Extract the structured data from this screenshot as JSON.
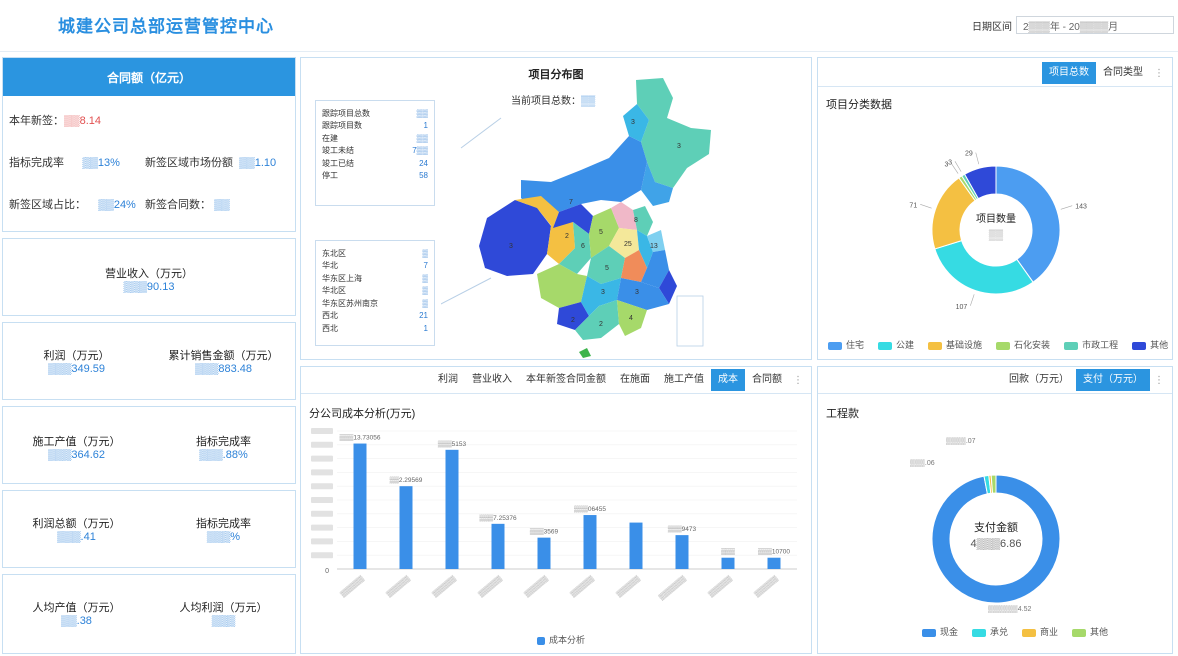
{
  "header": {
    "title": "城建公司总部运营管控中心",
    "date_label": "日期区间",
    "date_value": "2▒▒▒年 - 20▒▒▒▒月"
  },
  "contract_card": {
    "head": "合同额（亿元）",
    "year_added_label": "本年新签：",
    "year_added_value": "▒▒8.14",
    "rate_label": "指标完成率",
    "rate_value": "▒▒13%",
    "region_label": "新签区域市场份额",
    "region_value": "▒▒1.10",
    "share_label": "新签区域占比：",
    "share_value": "▒▒24%",
    "count_label": "新签合同数：",
    "count_value": "▒▒"
  },
  "stats": [
    {
      "label": "营业收入（万元）",
      "value": "▒▒▒90.13"
    },
    {
      "label": "利润（万元）",
      "value": "▒▒▒349.59"
    },
    {
      "label": "累计销售金额（万元）",
      "value": "▒▒▒883.48"
    },
    {
      "label": "施工产值（万元）",
      "value": "▒▒▒364.62"
    },
    {
      "label": "指标完成率",
      "value": "▒▒▒.88%"
    },
    {
      "label": "利润总额（万元）",
      "value": "▒▒▒.41"
    },
    {
      "label": "指标完成率",
      "value": "▒▒▒%"
    },
    {
      "label": "人均产值（万元）",
      "value": "▒▒.38"
    },
    {
      "label": "人均利润（万元）",
      "value": "▒▒▒"
    }
  ],
  "map": {
    "title": "项目分布图",
    "subtitle": "当前项目总数：",
    "subtitle_value": "▒▒",
    "status_list": [
      {
        "label": "跟踪项目总数",
        "value": "▒▒"
      },
      {
        "label": "跟踪项目数",
        "value": "1"
      },
      {
        "label": "在建",
        "value": "▒▒"
      },
      {
        "label": "竣工未结",
        "value": "7▒▒"
      },
      {
        "label": "竣工已结",
        "value": "24"
      },
      {
        "label": "停工",
        "value": "58"
      }
    ],
    "region_list": [
      {
        "label": "东北区",
        "value": "▒"
      },
      {
        "label": "华北",
        "value": "7"
      },
      {
        "label": "华东区上海",
        "value": "▒"
      },
      {
        "label": "华北区",
        "value": "▒"
      },
      {
        "label": "华东区苏州南京",
        "value": "▒"
      },
      {
        "label": "西北",
        "value": "21"
      },
      {
        "label": "西北",
        "value": "1"
      }
    ],
    "province_labels": [
      "3",
      "3",
      "3",
      "2",
      "5",
      "7",
      "6",
      "25",
      "13",
      "8",
      "5",
      "2",
      "3",
      "3",
      "2",
      "4"
    ]
  },
  "project_panel": {
    "tabs": [
      "项目总数",
      "合同类型"
    ],
    "active_tab": 0,
    "title": "项目分类数据",
    "center": "项目数量",
    "center_value": "▒▒",
    "legend": [
      "住宅",
      "公建",
      "基础设施",
      "石化安装",
      "市政工程",
      "其他"
    ]
  },
  "project_chart": {
    "type": "pie",
    "categories": [
      "住宅",
      "公建",
      "基础设施",
      "石化安装",
      "市政工程",
      "其他"
    ],
    "values": [
      143,
      107,
      71,
      3,
      3,
      29
    ],
    "colors": [
      "#4c9df1",
      "#36dbe3",
      "#f4c042",
      "#a6d96a",
      "#5ecfb7",
      "#2f49d8"
    ]
  },
  "bar_panel": {
    "tabs": [
      "利润",
      "营业收入",
      "本年新签合同金额",
      "在施面",
      "施工产值",
      "成本",
      "合同额"
    ],
    "active_tab": 5,
    "title": "分公司成本分析(万元)",
    "legend": "成本分析",
    "value_labels": [
      "▒▒▒13.73056",
      "▒▒2.29569",
      "▒▒▒5153",
      "▒▒▒7.25376",
      "▒▒▒3569",
      "▒▒▒06455",
      "",
      "▒▒▒9473",
      "▒▒▒",
      "▒▒▒10700"
    ],
    "tick_labels": [
      "▒▒▒▒▒▒",
      "▒▒▒▒▒▒",
      "▒▒▒▒▒▒",
      "▒▒▒▒▒▒",
      "▒▒▒▒▒▒",
      "▒▒▒▒▒▒",
      "▒▒▒▒▒▒",
      "▒▒▒▒▒▒▒",
      "▒▒▒▒▒▒",
      "▒▒▒▒▒▒"
    ],
    "axis_zero": "0"
  },
  "bar_chart": {
    "type": "bar",
    "categories": [
      "",
      "",
      "",
      "",
      "",
      "",
      "",
      "",
      "",
      ""
    ],
    "values": [
      100,
      66,
      95,
      36,
      25,
      43,
      37,
      27,
      9,
      9
    ],
    "ylim": [
      0,
      110
    ],
    "color": "#3a8fe8"
  },
  "payment_panel": {
    "tabs": [
      "回款（万元）",
      "支付（万元）"
    ],
    "active_tab": 1,
    "title": "工程款",
    "center": "支付金额",
    "center_value": "4▒▒▒6.86",
    "value_labels": [
      "▒▒▒▒.07",
      "▒▒▒.06",
      "▒▒▒▒▒▒4.52"
    ],
    "legend": [
      "现金",
      "承兑",
      "商业",
      "其他"
    ]
  },
  "payment_chart": {
    "type": "pie",
    "categories": [
      "现金",
      "承兑",
      "商业",
      "其他"
    ],
    "values": [
      97,
      1.2,
      0.6,
      1.2
    ],
    "colors": [
      "#3a8fe8",
      "#36dbe3",
      "#f4c042",
      "#a6d96a"
    ]
  }
}
